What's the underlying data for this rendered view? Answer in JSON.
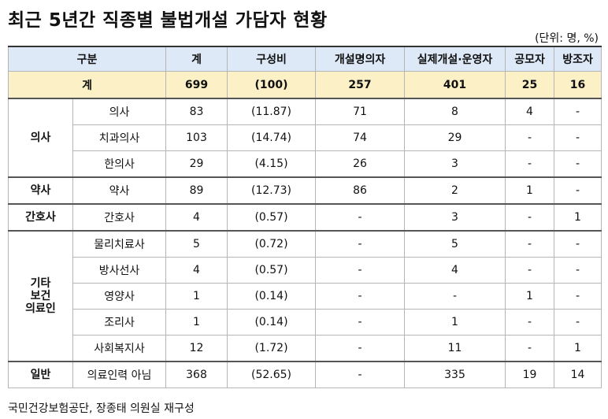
{
  "title": "최근 5년간 직종별 불법개설 가담자 현황",
  "unit_note": "(단위: 명, %)",
  "headers": [
    "구분",
    "계",
    "구성비",
    "개설명의자",
    "실제개설·운영자",
    "공모자",
    "방조자"
  ],
  "total": {
    "label": "계",
    "total": "699",
    "ratio": "(100)",
    "owner": "257",
    "operator": "401",
    "accomplice": "25",
    "abettor": "16"
  },
  "groups": [
    {
      "name": "의사",
      "rows": [
        {
          "job": "의사",
          "total": "83",
          "ratio": "(11.87)",
          "owner": "71",
          "operator": "8",
          "accomplice": "4",
          "abettor": "-"
        },
        {
          "job": "치과의사",
          "total": "103",
          "ratio": "(14.74)",
          "owner": "74",
          "operator": "29",
          "accomplice": "-",
          "abettor": "-"
        },
        {
          "job": "한의사",
          "total": "29",
          "ratio": "(4.15)",
          "owner": "26",
          "operator": "3",
          "accomplice": "-",
          "abettor": "-"
        }
      ]
    },
    {
      "name": "약사",
      "rows": [
        {
          "job": "약사",
          "total": "89",
          "ratio": "(12.73)",
          "owner": "86",
          "operator": "2",
          "accomplice": "1",
          "abettor": "-"
        }
      ]
    },
    {
      "name": "간호사",
      "rows": [
        {
          "job": "간호사",
          "total": "4",
          "ratio": "(0.57)",
          "owner": "-",
          "operator": "3",
          "accomplice": "-",
          "abettor": "1"
        }
      ]
    },
    {
      "name": "기타\n보건\n의료인",
      "rows": [
        {
          "job": "물리치료사",
          "total": "5",
          "ratio": "(0.72)",
          "owner": "-",
          "operator": "5",
          "accomplice": "-",
          "abettor": "-"
        },
        {
          "job": "방사선사",
          "total": "4",
          "ratio": "(0.57)",
          "owner": "-",
          "operator": "4",
          "accomplice": "-",
          "abettor": "-"
        },
        {
          "job": "영양사",
          "total": "1",
          "ratio": "(0.14)",
          "owner": "-",
          "operator": "-",
          "accomplice": "1",
          "abettor": "-"
        },
        {
          "job": "조리사",
          "total": "1",
          "ratio": "(0.14)",
          "owner": "-",
          "operator": "1",
          "accomplice": "-",
          "abettor": "-"
        },
        {
          "job": "사회복지사",
          "total": "12",
          "ratio": "(1.72)",
          "owner": "-",
          "operator": "11",
          "accomplice": "-",
          "abettor": "1"
        }
      ]
    },
    {
      "name": "일반",
      "rows": [
        {
          "job": "의료인력 아님",
          "total": "368",
          "ratio": "(52.65)",
          "owner": "-",
          "operator": "335",
          "accomplice": "19",
          "abettor": "14"
        }
      ]
    }
  ],
  "source": "국민건강보험공단, 장종태 의원실 재구성"
}
